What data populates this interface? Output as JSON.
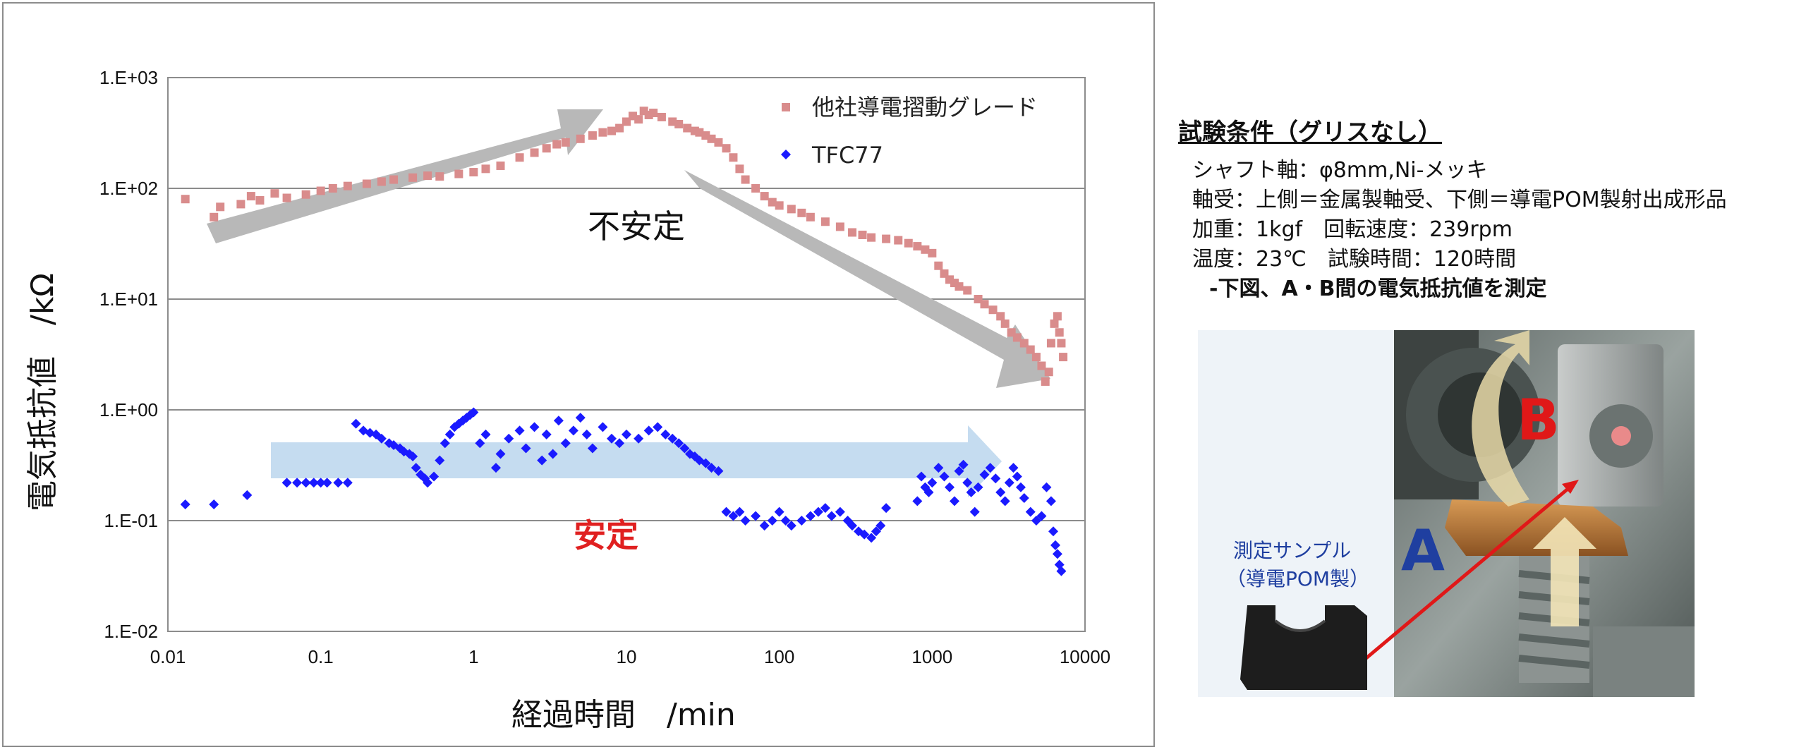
{
  "chart_data": {
    "type": "scatter",
    "xscale": "log",
    "yscale": "log",
    "xlim": [
      0.01,
      10000
    ],
    "ylim": [
      0.01,
      1000
    ],
    "xlabel": "経過時間　/min",
    "ylabel": "電気抵抗値　/kΩ",
    "x_ticks": [
      "0.01",
      "0.1",
      "1",
      "10",
      "100",
      "1000",
      "10000"
    ],
    "y_ticks": [
      "1.E+03",
      "1.E+02",
      "1.E+01",
      "1.E+00",
      "1.E-01",
      "1.E-02"
    ],
    "grid": "horizontal",
    "legend_position": "top-right",
    "annotations": {
      "unstable": "不安定",
      "stable": "安定"
    },
    "series": [
      {
        "name": "他社導電摺動グレード",
        "color": "#d98c8c",
        "marker": "square",
        "points": [
          [
            0.013,
            80
          ],
          [
            0.02,
            55
          ],
          [
            0.022,
            68
          ],
          [
            0.03,
            72
          ],
          [
            0.035,
            85
          ],
          [
            0.04,
            78
          ],
          [
            0.05,
            90
          ],
          [
            0.06,
            82
          ],
          [
            0.08,
            88
          ],
          [
            0.1,
            95
          ],
          [
            0.12,
            100
          ],
          [
            0.15,
            105
          ],
          [
            0.2,
            110
          ],
          [
            0.25,
            115
          ],
          [
            0.3,
            120
          ],
          [
            0.4,
            125
          ],
          [
            0.5,
            130
          ],
          [
            0.6,
            128
          ],
          [
            0.8,
            135
          ],
          [
            1.0,
            140
          ],
          [
            1.2,
            150
          ],
          [
            1.5,
            160
          ],
          [
            2,
            190
          ],
          [
            2.5,
            210
          ],
          [
            3,
            230
          ],
          [
            3.5,
            250
          ],
          [
            4,
            260
          ],
          [
            5,
            280
          ],
          [
            6,
            300
          ],
          [
            7,
            320
          ],
          [
            8,
            330
          ],
          [
            9,
            350
          ],
          [
            10,
            400
          ],
          [
            11,
            450
          ],
          [
            12,
            420
          ],
          [
            13,
            500
          ],
          [
            14,
            460
          ],
          [
            15,
            480
          ],
          [
            17,
            440
          ],
          [
            20,
            400
          ],
          [
            22,
            380
          ],
          [
            25,
            350
          ],
          [
            28,
            330
          ],
          [
            30,
            320
          ],
          [
            33,
            300
          ],
          [
            36,
            280
          ],
          [
            40,
            260
          ],
          [
            45,
            230
          ],
          [
            50,
            190
          ],
          [
            55,
            150
          ],
          [
            60,
            120
          ],
          [
            70,
            100
          ],
          [
            80,
            85
          ],
          [
            90,
            75
          ],
          [
            100,
            70
          ],
          [
            120,
            65
          ],
          [
            140,
            60
          ],
          [
            160,
            55
          ],
          [
            200,
            50
          ],
          [
            250,
            45
          ],
          [
            300,
            40
          ],
          [
            350,
            38
          ],
          [
            400,
            36
          ],
          [
            500,
            35
          ],
          [
            600,
            34
          ],
          [
            700,
            32
          ],
          [
            800,
            30
          ],
          [
            900,
            28
          ],
          [
            1000,
            26
          ],
          [
            1100,
            20
          ],
          [
            1200,
            17
          ],
          [
            1300,
            15
          ],
          [
            1400,
            14
          ],
          [
            1500,
            13
          ],
          [
            1700,
            12
          ],
          [
            2000,
            10
          ],
          [
            2200,
            9
          ],
          [
            2500,
            8
          ],
          [
            2800,
            7
          ],
          [
            3000,
            6
          ],
          [
            3300,
            5
          ],
          [
            3600,
            4.5
          ],
          [
            4000,
            4
          ],
          [
            4400,
            3.5
          ],
          [
            4800,
            3
          ],
          [
            5200,
            2.5
          ],
          [
            5500,
            1.8
          ],
          [
            5800,
            2.2
          ],
          [
            6000,
            4
          ],
          [
            6300,
            6
          ],
          [
            6600,
            7
          ],
          [
            6800,
            5
          ],
          [
            7000,
            4
          ],
          [
            7200,
            3
          ]
        ]
      },
      {
        "name": "TFC77",
        "color": "#1a1aff",
        "marker": "diamond",
        "points": [
          [
            0.013,
            0.14
          ],
          [
            0.02,
            0.14
          ],
          [
            0.033,
            0.17
          ],
          [
            0.06,
            0.22
          ],
          [
            0.07,
            0.22
          ],
          [
            0.08,
            0.22
          ],
          [
            0.09,
            0.22
          ],
          [
            0.1,
            0.22
          ],
          [
            0.11,
            0.22
          ],
          [
            0.13,
            0.22
          ],
          [
            0.15,
            0.22
          ],
          [
            0.17,
            0.75
          ],
          [
            0.19,
            0.65
          ],
          [
            0.21,
            0.62
          ],
          [
            0.23,
            0.6
          ],
          [
            0.25,
            0.55
          ],
          [
            0.28,
            0.5
          ],
          [
            0.3,
            0.48
          ],
          [
            0.33,
            0.45
          ],
          [
            0.35,
            0.42
          ],
          [
            0.38,
            0.4
          ],
          [
            0.4,
            0.38
          ],
          [
            0.42,
            0.3
          ],
          [
            0.45,
            0.26
          ],
          [
            0.48,
            0.24
          ],
          [
            0.5,
            0.22
          ],
          [
            0.55,
            0.25
          ],
          [
            0.6,
            0.35
          ],
          [
            0.65,
            0.5
          ],
          [
            0.7,
            0.6
          ],
          [
            0.75,
            0.7
          ],
          [
            0.8,
            0.75
          ],
          [
            0.85,
            0.8
          ],
          [
            0.9,
            0.85
          ],
          [
            0.95,
            0.9
          ],
          [
            1.0,
            0.95
          ],
          [
            1.1,
            0.5
          ],
          [
            1.2,
            0.6
          ],
          [
            1.4,
            0.3
          ],
          [
            1.5,
            0.4
          ],
          [
            1.7,
            0.55
          ],
          [
            2,
            0.65
          ],
          [
            2.2,
            0.45
          ],
          [
            2.5,
            0.7
          ],
          [
            2.8,
            0.35
          ],
          [
            3,
            0.6
          ],
          [
            3.3,
            0.4
          ],
          [
            3.6,
            0.8
          ],
          [
            4,
            0.5
          ],
          [
            4.5,
            0.65
          ],
          [
            5,
            0.85
          ],
          [
            5.5,
            0.6
          ],
          [
            6,
            0.45
          ],
          [
            7,
            0.7
          ],
          [
            8,
            0.55
          ],
          [
            9,
            0.5
          ],
          [
            10,
            0.6
          ],
          [
            12,
            0.55
          ],
          [
            14,
            0.65
          ],
          [
            16,
            0.7
          ],
          [
            18,
            0.6
          ],
          [
            20,
            0.55
          ],
          [
            22,
            0.5
          ],
          [
            24,
            0.45
          ],
          [
            26,
            0.4
          ],
          [
            28,
            0.38
          ],
          [
            30,
            0.35
          ],
          [
            33,
            0.33
          ],
          [
            36,
            0.3
          ],
          [
            40,
            0.28
          ],
          [
            45,
            0.12
          ],
          [
            50,
            0.11
          ],
          [
            55,
            0.12
          ],
          [
            60,
            0.1
          ],
          [
            70,
            0.11
          ],
          [
            80,
            0.09
          ],
          [
            90,
            0.1
          ],
          [
            100,
            0.12
          ],
          [
            110,
            0.1
          ],
          [
            120,
            0.09
          ],
          [
            140,
            0.1
          ],
          [
            160,
            0.11
          ],
          [
            180,
            0.12
          ],
          [
            200,
            0.13
          ],
          [
            220,
            0.11
          ],
          [
            250,
            0.12
          ],
          [
            280,
            0.1
          ],
          [
            300,
            0.09
          ],
          [
            330,
            0.08
          ],
          [
            360,
            0.075
          ],
          [
            400,
            0.07
          ],
          [
            430,
            0.08
          ],
          [
            460,
            0.09
          ],
          [
            500,
            0.13
          ],
          [
            800,
            0.15
          ],
          [
            850,
            0.25
          ],
          [
            900,
            0.2
          ],
          [
            950,
            0.18
          ],
          [
            1000,
            0.22
          ],
          [
            1100,
            0.3
          ],
          [
            1200,
            0.25
          ],
          [
            1300,
            0.2
          ],
          [
            1400,
            0.15
          ],
          [
            1500,
            0.28
          ],
          [
            1600,
            0.32
          ],
          [
            1700,
            0.22
          ],
          [
            1800,
            0.18
          ],
          [
            1900,
            0.12
          ],
          [
            2000,
            0.2
          ],
          [
            2200,
            0.26
          ],
          [
            2400,
            0.3
          ],
          [
            2600,
            0.24
          ],
          [
            2800,
            0.18
          ],
          [
            3000,
            0.15
          ],
          [
            3200,
            0.22
          ],
          [
            3400,
            0.3
          ],
          [
            3600,
            0.25
          ],
          [
            3800,
            0.2
          ],
          [
            4000,
            0.16
          ],
          [
            4400,
            0.12
          ],
          [
            4800,
            0.1
          ],
          [
            5200,
            0.11
          ],
          [
            5600,
            0.2
          ],
          [
            6000,
            0.15
          ],
          [
            6200,
            0.08
          ],
          [
            6400,
            0.06
          ],
          [
            6600,
            0.05
          ],
          [
            6800,
            0.04
          ],
          [
            7000,
            0.035
          ]
        ]
      }
    ]
  },
  "conditions": {
    "title": "試験条件（グリスなし）",
    "lines": [
      "シャフト軸：φ8mm,Ni-メッキ",
      "軸受：上側＝金属製軸受、下側＝導電POM製射出成形品",
      "加重：1kgf　回転速度：239rpm",
      "温度：23℃　試験時間：120時間"
    ],
    "note": "-下図、A・B間の電気抵抗値を測定"
  },
  "photo": {
    "sample_label_line1": "測定サンプル",
    "sample_label_line2": "（導電POM製）",
    "label_a": "A",
    "label_b": "B"
  },
  "colors": {
    "unstable_text": "#111111",
    "stable_text": "#e02020",
    "arrow_gray": "#b8b8b8",
    "arrow_blue": "#c5dcf0",
    "label_a": "#1f3fa0",
    "label_b": "#e01818",
    "red_line": "#e01818"
  }
}
